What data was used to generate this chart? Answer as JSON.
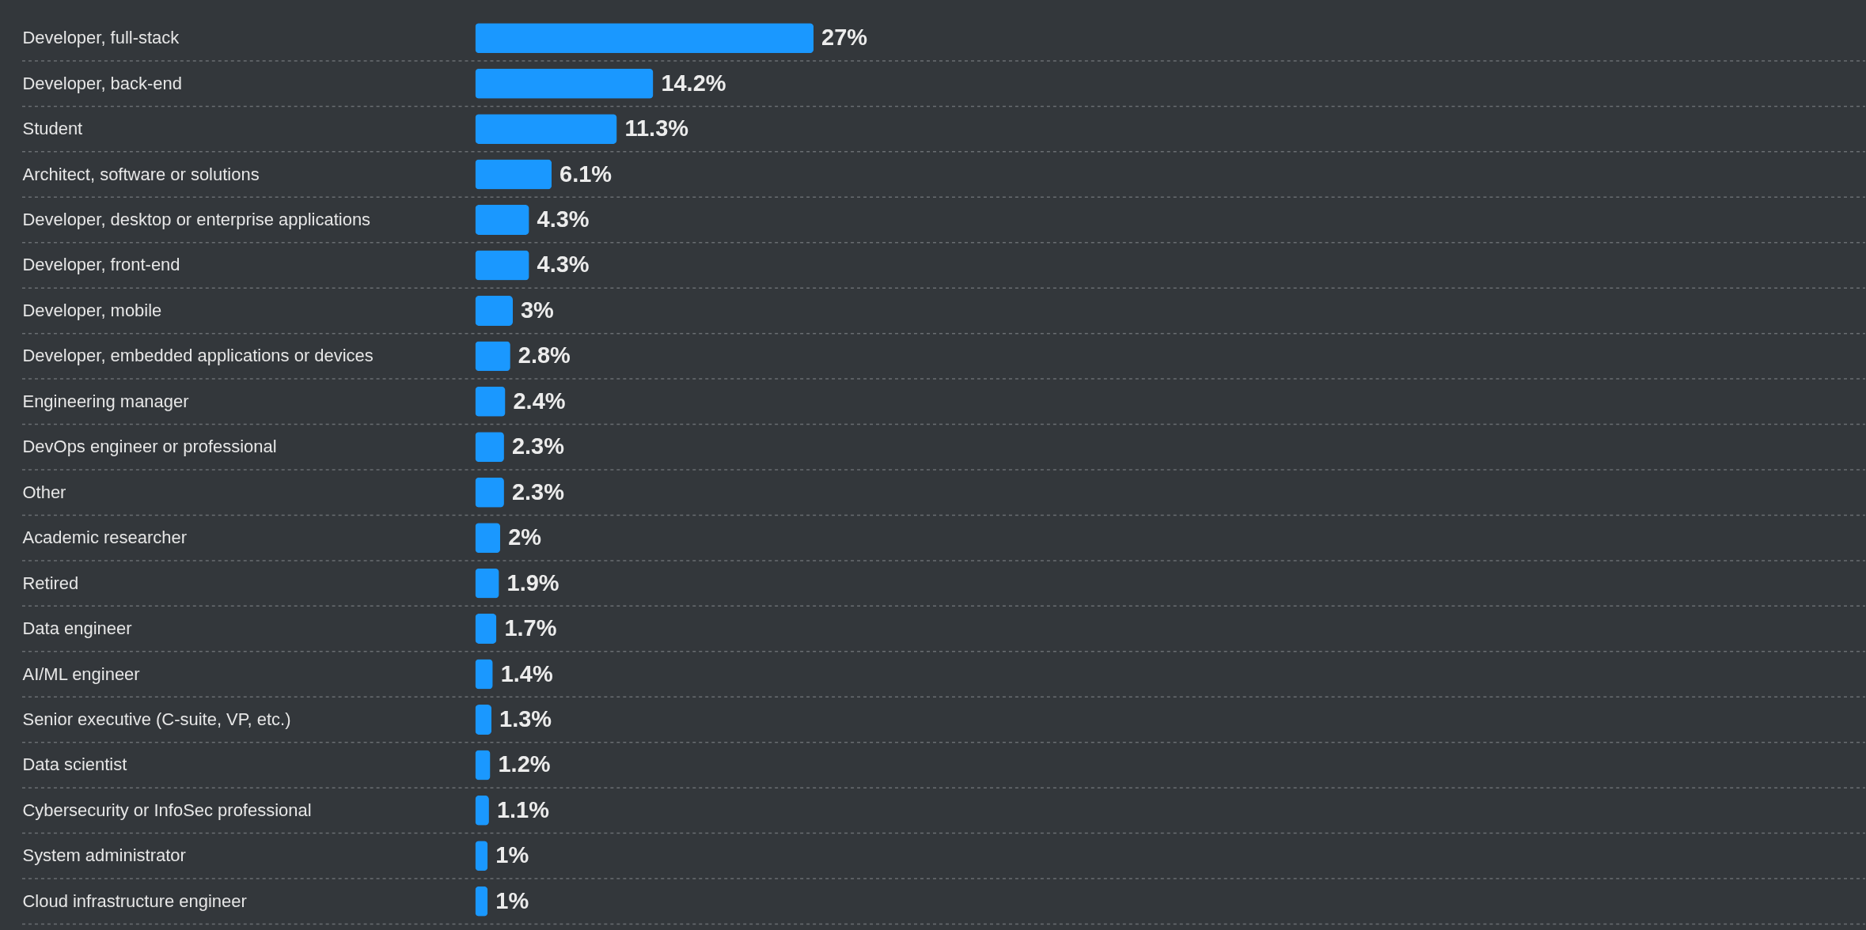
{
  "chart_data": {
    "type": "bar",
    "orientation": "horizontal",
    "categories": [
      "Developer, full-stack",
      "Developer, back-end",
      "Student",
      "Architect, software or solutions",
      "Developer, desktop or enterprise applications",
      "Developer, front-end",
      "Developer, mobile",
      "Developer, embedded applications or devices",
      "Engineering manager",
      "DevOps engineer or professional",
      "Other",
      "Academic researcher",
      "Retired",
      "Data engineer",
      "AI/ML engineer",
      "Senior executive (C-suite, VP, etc.)",
      "Data scientist",
      "Cybersecurity or InfoSec professional",
      "System administrator",
      "Cloud infrastructure engineer"
    ],
    "values": [
      27,
      14.2,
      11.3,
      6.1,
      4.3,
      4.3,
      3,
      2.8,
      2.4,
      2.3,
      2.3,
      2,
      1.9,
      1.7,
      1.4,
      1.3,
      1.2,
      1.1,
      1,
      1
    ],
    "value_labels": [
      "27%",
      "14.2%",
      "11.3%",
      "6.1%",
      "4.3%",
      "4.3%",
      "3%",
      "2.8%",
      "2.4%",
      "2.3%",
      "2.3%",
      "2%",
      "1.9%",
      "1.7%",
      "1.4%",
      "1.3%",
      "1.2%",
      "1.1%",
      "1%",
      "1%"
    ],
    "color": "#1a98ff",
    "grid": "y"
  }
}
